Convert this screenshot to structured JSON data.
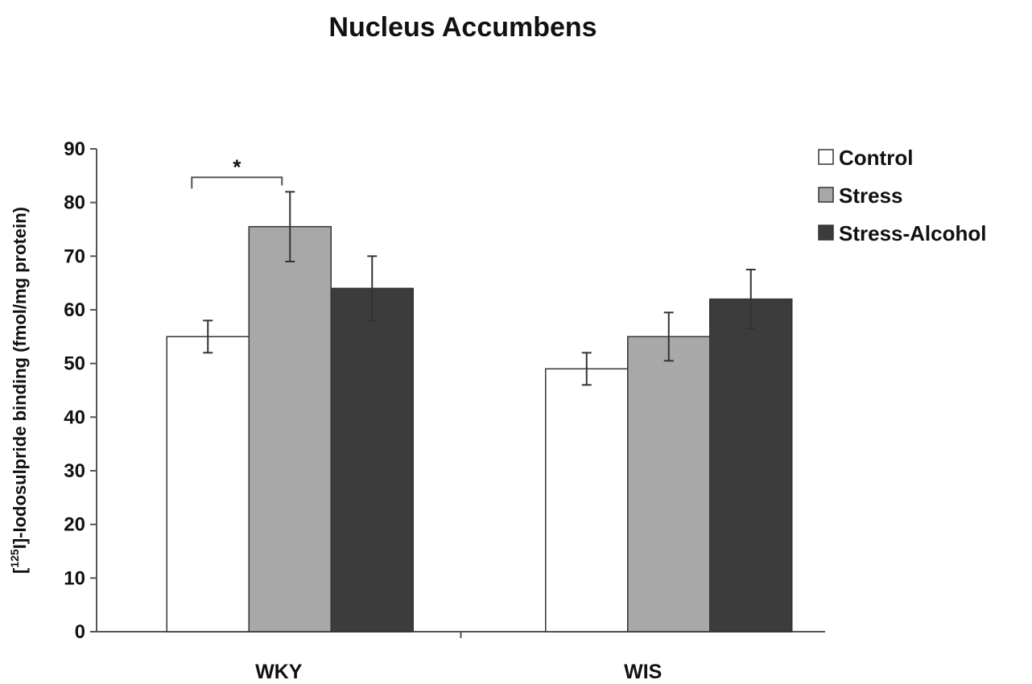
{
  "chart_data": {
    "type": "bar",
    "title": "Nucleus Accumbens",
    "ylabel_super": "125",
    "ylabel_pre": "[",
    "ylabel_post": "I]-Iodosulpride binding (fmol/mg protein)",
    "xlabel": "",
    "ylim": [
      0,
      90
    ],
    "yticks": [
      0,
      10,
      20,
      30,
      40,
      50,
      60,
      70,
      80,
      90
    ],
    "categories": [
      "WKY",
      "WIS"
    ],
    "series": [
      {
        "name": "Control",
        "color": "#ffffff",
        "values": [
          55,
          49
        ],
        "errors": [
          3,
          3
        ]
      },
      {
        "name": "Stress",
        "color": "#a8a8a8",
        "values": [
          75.5,
          55
        ],
        "errors": [
          6.5,
          4.5
        ]
      },
      {
        "name": "Stress-Alcohol",
        "color": "#3c3c3c",
        "values": [
          64,
          62
        ],
        "errors": [
          6,
          5.5
        ]
      }
    ],
    "grid": false,
    "legend_position": "top-right",
    "annotations": [
      {
        "text": "*",
        "category": "WKY",
        "from_series": "Control",
        "to_series": "Stress"
      }
    ]
  }
}
